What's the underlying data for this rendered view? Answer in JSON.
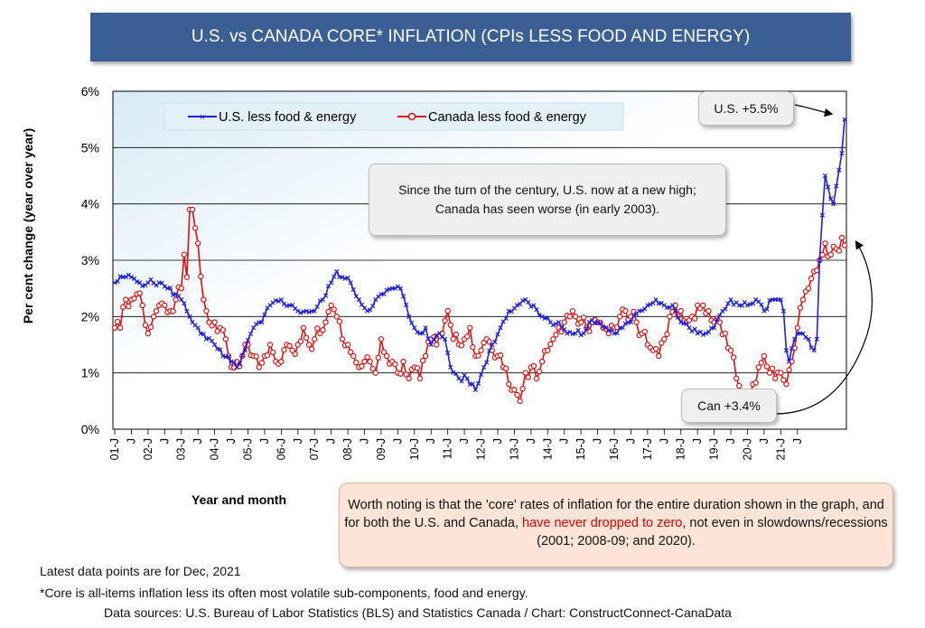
{
  "title": "U.S. vs CANADA CORE* INFLATION (CPIs LESS FOOD AND ENERGY)",
  "legend": {
    "us": "U.S. less food & energy",
    "canada": "Canada less food & energy"
  },
  "callouts": {
    "century": "Since the turn of the century, U.S. now at a new high; Canada has seen worse (in early 2003).",
    "us_label": "U.S. +5.5%",
    "can_label": "Can +3.4%"
  },
  "note": {
    "part1": "Worth noting is that the 'core' rates of inflation for the entire duration shown in the graph, and for both the U.S. and Canada, ",
    "highlight": "have never dropped to zero",
    "part2": ", not even in slowdowns/recessions (2001; 2008-09; and 2020)."
  },
  "footer": {
    "latest": "Latest data points are for Dec, 2021",
    "core_def": "*Core is all-items inflation less its often most volatile sub-components, food and energy.",
    "sources": "Data sources: U.S. Bureau of Labor Statistics (BLS) and Statistics Canada / Chart: ConstructConnect-CanaData"
  },
  "colors": {
    "us": "#1f1fe0",
    "canada": "#e01010",
    "title_bg": "#3a5f95"
  },
  "chart_data": {
    "type": "line",
    "xlabel": "Year and month",
    "ylabel": "Per cent change (year over year)",
    "ylim": [
      0,
      6
    ],
    "yticks": [
      "0%",
      "1%",
      "2%",
      "3%",
      "4%",
      "5%",
      "6%"
    ],
    "x_start": "Jan 2001",
    "x_end": "Dec 2021",
    "xtick_labels": [
      "01-J",
      "J",
      "02-J",
      "J",
      "03-J",
      "J",
      "04-J",
      "J",
      "05-J",
      "J",
      "06-J",
      "J",
      "07-J",
      "J",
      "08-J",
      "J",
      "09-J",
      "J",
      "10-J",
      "J",
      "11-J",
      "J",
      "12-J",
      "J",
      "13-J",
      "J",
      "14-J",
      "J",
      "15-J",
      "J",
      "16-J",
      "J",
      "17-J",
      "J",
      "18-J",
      "J",
      "19-J",
      "J",
      "20-J",
      "J",
      "21-J",
      "J"
    ],
    "series": [
      {
        "name": "U.S. less food & energy",
        "anchors": [
          [
            0,
            2.6
          ],
          [
            3,
            2.7
          ],
          [
            6,
            2.7
          ],
          [
            9,
            2.6
          ],
          [
            12,
            2.6
          ],
          [
            16,
            2.6
          ],
          [
            19,
            2.5
          ],
          [
            22,
            2.4
          ],
          [
            24,
            2.3
          ],
          [
            27,
            2.0
          ],
          [
            30,
            1.8
          ],
          [
            33,
            1.6
          ],
          [
            36,
            1.5
          ],
          [
            39,
            1.3
          ],
          [
            42,
            1.2
          ],
          [
            44,
            1.1
          ],
          [
            47,
            1.4
          ],
          [
            50,
            1.8
          ],
          [
            53,
            1.9
          ],
          [
            56,
            2.2
          ],
          [
            60,
            2.3
          ],
          [
            63,
            2.2
          ],
          [
            66,
            2.1
          ],
          [
            69,
            2.1
          ],
          [
            72,
            2.1
          ],
          [
            75,
            2.3
          ],
          [
            78,
            2.6
          ],
          [
            80,
            2.8
          ],
          [
            82,
            2.7
          ],
          [
            85,
            2.6
          ],
          [
            88,
            2.3
          ],
          [
            91,
            2.1
          ],
          [
            94,
            2.3
          ],
          [
            97,
            2.4
          ],
          [
            100,
            2.5
          ],
          [
            103,
            2.5
          ],
          [
            106,
            2.0
          ],
          [
            108,
            1.8
          ],
          [
            110,
            1.7
          ],
          [
            112,
            1.8
          ],
          [
            114,
            1.5
          ],
          [
            117,
            1.7
          ],
          [
            119,
            1.6
          ],
          [
            121,
            1.1
          ],
          [
            124,
            0.9
          ],
          [
            127,
            0.9
          ],
          [
            130,
            0.7
          ],
          [
            133,
            1.1
          ],
          [
            136,
            1.5
          ],
          [
            139,
            1.8
          ],
          [
            142,
            2.1
          ],
          [
            145,
            2.2
          ],
          [
            148,
            2.3
          ],
          [
            151,
            2.2
          ],
          [
            154,
            2.0
          ],
          [
            157,
            1.9
          ],
          [
            160,
            1.9
          ],
          [
            163,
            1.7
          ],
          [
            166,
            1.7
          ],
          [
            169,
            1.7
          ],
          [
            171,
            1.9
          ],
          [
            174,
            1.9
          ],
          [
            177,
            1.8
          ],
          [
            180,
            1.7
          ],
          [
            183,
            1.8
          ],
          [
            186,
            1.9
          ],
          [
            189,
            2.1
          ],
          [
            192,
            2.2
          ],
          [
            195,
            2.3
          ],
          [
            198,
            2.2
          ],
          [
            201,
            2.2
          ],
          [
            204,
            1.9
          ],
          [
            207,
            1.8
          ],
          [
            210,
            1.7
          ],
          [
            213,
            1.7
          ],
          [
            216,
            1.8
          ],
          [
            219,
            2.1
          ],
          [
            222,
            2.3
          ],
          [
            225,
            2.2
          ],
          [
            228,
            2.2
          ],
          [
            231,
            2.3
          ],
          [
            234,
            2.1
          ],
          [
            237,
            2.3
          ],
          [
            239,
            2.3
          ],
          [
            240,
            2.3
          ],
          [
            241,
            2.1
          ],
          [
            242,
            1.4
          ],
          [
            243,
            1.2
          ],
          [
            245,
            1.6
          ],
          [
            247,
            1.7
          ],
          [
            250,
            1.6
          ],
          [
            252,
            1.4
          ],
          [
            253,
            1.6
          ],
          [
            254,
            3.0
          ],
          [
            255,
            3.8
          ],
          [
            256,
            4.5
          ],
          [
            257,
            4.3
          ],
          [
            259,
            4.0
          ],
          [
            261,
            4.6
          ],
          [
            262,
            4.9
          ],
          [
            263,
            5.5
          ]
        ]
      },
      {
        "name": "Canada less food & energy",
        "anchors": [
          [
            0,
            1.8
          ],
          [
            2,
            1.8
          ],
          [
            4,
            2.3
          ],
          [
            6,
            2.3
          ],
          [
            8,
            2.4
          ],
          [
            10,
            2.2
          ],
          [
            12,
            1.7
          ],
          [
            14,
            2.0
          ],
          [
            16,
            2.2
          ],
          [
            18,
            2.2
          ],
          [
            20,
            2.1
          ],
          [
            22,
            2.3
          ],
          [
            24,
            2.5
          ],
          [
            25,
            3.1
          ],
          [
            26,
            2.7
          ],
          [
            27,
            3.9
          ],
          [
            28,
            3.9
          ],
          [
            30,
            3.3
          ],
          [
            32,
            2.3
          ],
          [
            34,
            1.9
          ],
          [
            36,
            1.9
          ],
          [
            38,
            1.8
          ],
          [
            40,
            1.6
          ],
          [
            42,
            1.1
          ],
          [
            44,
            1.2
          ],
          [
            46,
            1.3
          ],
          [
            48,
            1.5
          ],
          [
            50,
            1.3
          ],
          [
            52,
            1.1
          ],
          [
            54,
            1.3
          ],
          [
            56,
            1.5
          ],
          [
            58,
            1.2
          ],
          [
            60,
            1.2
          ],
          [
            62,
            1.5
          ],
          [
            64,
            1.4
          ],
          [
            66,
            1.5
          ],
          [
            68,
            1.8
          ],
          [
            70,
            1.5
          ],
          [
            72,
            1.6
          ],
          [
            74,
            1.7
          ],
          [
            76,
            1.9
          ],
          [
            78,
            2.2
          ],
          [
            80,
            2.0
          ],
          [
            82,
            1.6
          ],
          [
            84,
            1.5
          ],
          [
            86,
            1.3
          ],
          [
            88,
            1.1
          ],
          [
            90,
            1.2
          ],
          [
            92,
            1.2
          ],
          [
            94,
            1.0
          ],
          [
            96,
            1.6
          ],
          [
            98,
            1.3
          ],
          [
            100,
            1.2
          ],
          [
            102,
            1.0
          ],
          [
            104,
            1.2
          ],
          [
            106,
            0.9
          ],
          [
            108,
            1.1
          ],
          [
            110,
            0.9
          ],
          [
            112,
            1.3
          ],
          [
            114,
            1.6
          ],
          [
            116,
            1.5
          ],
          [
            118,
            1.7
          ],
          [
            120,
            2.1
          ],
          [
            122,
            1.6
          ],
          [
            124,
            1.5
          ],
          [
            126,
            1.6
          ],
          [
            128,
            1.8
          ],
          [
            130,
            1.3
          ],
          [
            132,
            1.4
          ],
          [
            134,
            1.6
          ],
          [
            136,
            1.4
          ],
          [
            138,
            1.3
          ],
          [
            140,
            1.1
          ],
          [
            142,
            0.8
          ],
          [
            144,
            0.7
          ],
          [
            146,
            0.5
          ],
          [
            148,
            1.0
          ],
          [
            150,
            1.1
          ],
          [
            152,
            0.9
          ],
          [
            154,
            1.2
          ],
          [
            156,
            1.4
          ],
          [
            158,
            1.6
          ],
          [
            160,
            1.8
          ],
          [
            162,
            1.9
          ],
          [
            164,
            2.0
          ],
          [
            166,
            2.0
          ],
          [
            168,
            1.9
          ],
          [
            170,
            1.8
          ],
          [
            172,
            1.9
          ],
          [
            174,
            1.9
          ],
          [
            176,
            1.8
          ],
          [
            178,
            1.7
          ],
          [
            180,
            1.8
          ],
          [
            182,
            2.0
          ],
          [
            184,
            2.1
          ],
          [
            186,
            2.0
          ],
          [
            188,
            1.9
          ],
          [
            190,
            1.7
          ],
          [
            192,
            1.5
          ],
          [
            194,
            1.4
          ],
          [
            196,
            1.3
          ],
          [
            198,
            1.6
          ],
          [
            200,
            2.0
          ],
          [
            202,
            2.2
          ],
          [
            204,
            2.1
          ],
          [
            206,
            1.9
          ],
          [
            208,
            2.0
          ],
          [
            210,
            2.2
          ],
          [
            212,
            2.2
          ],
          [
            214,
            2.1
          ],
          [
            216,
            1.9
          ],
          [
            218,
            1.9
          ],
          [
            220,
            1.7
          ],
          [
            222,
            1.4
          ],
          [
            224,
            0.9
          ],
          [
            226,
            0.6
          ],
          [
            228,
            0.5
          ],
          [
            230,
            0.8
          ],
          [
            232,
            1.1
          ],
          [
            234,
            1.3
          ],
          [
            236,
            1.0
          ],
          [
            238,
            0.9
          ],
          [
            240,
            1.0
          ],
          [
            242,
            0.8
          ],
          [
            244,
            1.2
          ],
          [
            246,
            1.8
          ],
          [
            248,
            2.3
          ],
          [
            250,
            2.5
          ],
          [
            252,
            2.8
          ],
          [
            254,
            3.0
          ],
          [
            256,
            3.3
          ],
          [
            258,
            3.1
          ],
          [
            260,
            3.2
          ],
          [
            262,
            3.4
          ]
        ]
      }
    ]
  }
}
